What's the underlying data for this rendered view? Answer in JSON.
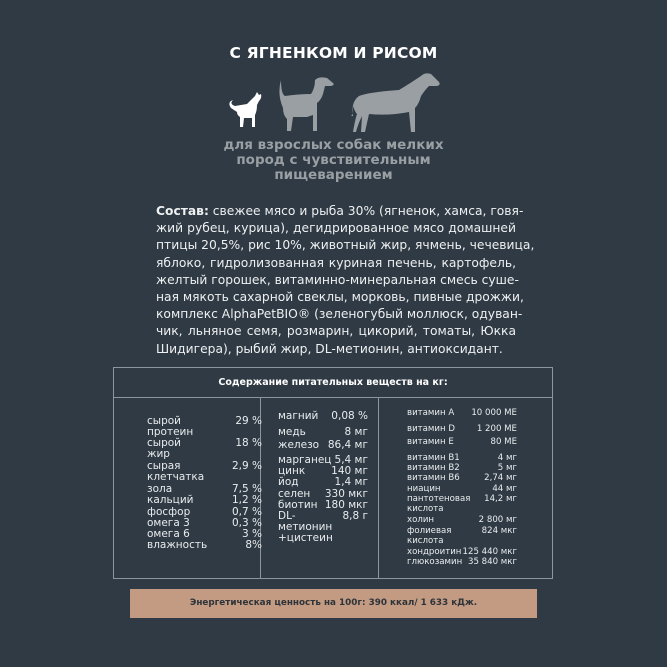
{
  "title": "С ЯГНЕНКОМ И РИСОМ",
  "subtitle": "для взрослых собак мелких\nпород с чувствительным\nпищеварением",
  "colors": {
    "background": "#2f3a44",
    "small_dog": "#ffffff",
    "large_dogs": "#9a9fa3",
    "energy_band": "#c39b82"
  },
  "composition": {
    "label": "Состав:",
    "lines": [
      " свежее мясо и рыба 30% (ягненок, хамса, говя-",
      "жий рубец, курица), дегидрированное мясо домашней",
      "птицы 20,5%, рис 10%, животный жир, ячмень, чечевица,",
      "яблоко, гидролизованная куриная печень, картофель,",
      "желтый горошек, витаминно-минеральная смесь суше-",
      "ная мякоть сахарной свеклы, морковь, пивные дрожжи,",
      "комплекс AlphaPetBIO® (зеленогубый моллюск, одуван-",
      "чик, льняное семя, розмарин, цикорий, томаты, Юкка",
      "Шидигера), рыбий жир, DL-метионин, антиоксидант."
    ]
  },
  "nutrients": {
    "header": "Содержание питательных веществ на кг:",
    "col1": [
      {
        "label": "сырой\nпротеин",
        "value": "29 %"
      },
      {
        "label": "сырой\nжир",
        "value": "18 %"
      },
      {
        "label": "сырая\nклетчатка",
        "value": "2,9 %"
      },
      {
        "label": "зола",
        "value": "7,5 %"
      },
      {
        "label": "кальций",
        "value": "1,2 %"
      },
      {
        "label": "фосфор",
        "value": "0,7 %"
      },
      {
        "label": "омега 3",
        "value": "0,3 %"
      },
      {
        "label": "омега 6",
        "value": "3 %"
      },
      {
        "label": "влажность",
        "value": "8%"
      }
    ],
    "col2": [
      {
        "label": "магний",
        "value": "0,08 %"
      },
      {
        "label": "медь",
        "value": "8 мг"
      },
      {
        "label": "железо",
        "value": "86,4 мг"
      },
      {
        "label": "марганец",
        "value": "5,4 мг"
      },
      {
        "label": "цинк",
        "value": "140 мг"
      },
      {
        "label": "йод",
        "value": "1,4 мг"
      },
      {
        "label": "селен",
        "value": "330 мкг"
      },
      {
        "label": "биотин",
        "value": "180 мкг"
      },
      {
        "label": "DL-метионин\n+цистеин",
        "value": "8,8 г"
      }
    ],
    "col3": [
      {
        "label": "витамин A",
        "value": "10 000 МЕ"
      },
      {
        "label": "витамин D",
        "value": "1 200 МЕ"
      },
      {
        "label": "витамин E",
        "value": "80 МЕ"
      },
      {
        "label": "витамин B1",
        "value": "4 мг"
      },
      {
        "label": "витамин B2",
        "value": "5 мг"
      },
      {
        "label": "витамин B6",
        "value": "2,74 мг"
      },
      {
        "label": "ниацин",
        "value": "44 мг"
      },
      {
        "label": "пантотеновая\nкислота",
        "value": "14,2 мг"
      },
      {
        "label": "холин",
        "value": "2 800 мг"
      },
      {
        "label": "фолиевая\nкислота",
        "value": "824 мкг"
      },
      {
        "label": "хондроитин",
        "value": "125 440 мкг"
      },
      {
        "label": "глюкозамин",
        "value": "35 840 мкг"
      }
    ]
  },
  "energy": "Энергетическая ценность на 100г: 390 ккал/ 1 633 кДж."
}
